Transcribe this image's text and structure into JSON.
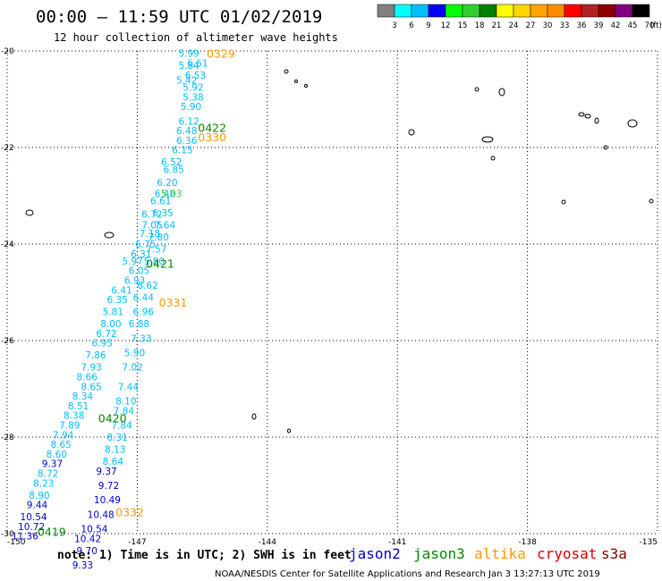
{
  "header": {
    "title": "00:00 – 11:59 UTC 01/02/2019",
    "subtitle": "12 hour collection of altimeter wave heights"
  },
  "colorbar": {
    "labels": [
      "3",
      "6",
      "9",
      "12",
      "15",
      "18",
      "21",
      "24",
      "27",
      "30",
      "33",
      "36",
      "39",
      "42",
      "45",
      "70"
    ],
    "unit": "(ft)",
    "colors": [
      "#808080",
      "#00ffff",
      "#00bfff",
      "#0000ff",
      "#00ff00",
      "#32cd32",
      "#008000",
      "#ffff00",
      "#ffd700",
      "#ffa500",
      "#ff8c00",
      "#ff0000",
      "#b22222",
      "#8b0000",
      "#800080",
      "#000000"
    ]
  },
  "axes": {
    "lat_ticks": [
      "-20",
      "-22",
      "-24",
      "-26",
      "-28",
      "-30"
    ],
    "lon_ticks": [
      "-150",
      "-147",
      "-144",
      "-141",
      "-138",
      "-135"
    ],
    "lon_range": [
      -150,
      -135
    ],
    "lat_range": [
      -30,
      -20
    ]
  },
  "legend": {
    "note": "note: 1) Time is in UTC; 2) SWH is in feet",
    "satellites": [
      {
        "name": "jason2",
        "color": "#0000cc"
      },
      {
        "name": "jason3",
        "color": "#008800"
      },
      {
        "name": "altika",
        "color": "#ff9900"
      },
      {
        "name": "cryosat",
        "color": "#dd0000"
      },
      {
        "name": "s3a",
        "color": "#880000"
      }
    ]
  },
  "credit": "NOAA/NESDIS Center for Satellite Applications and Research   Jan  3 13:27:13 UTC 2019",
  "time_labels": [
    {
      "text": "0329",
      "lon": -145.4,
      "lat": -20.05,
      "color": "#ff9900"
    },
    {
      "text": "0422",
      "lon": -145.6,
      "lat": -21.58,
      "color": "#008800"
    },
    {
      "text": "0330",
      "lon": -145.6,
      "lat": -21.78,
      "color": "#ff9900"
    },
    {
      "text": "0421",
      "lon": -146.8,
      "lat": -24.4,
      "color": "#008800"
    },
    {
      "text": "0331",
      "lon": -146.5,
      "lat": -25.2,
      "color": "#ff9900"
    },
    {
      "text": "0420",
      "lon": -147.9,
      "lat": -27.6,
      "color": "#008800"
    },
    {
      "text": "0332",
      "lon": -147.5,
      "lat": -29.55,
      "color": "#ff9900"
    },
    {
      "text": "0419",
      "lon": -149.3,
      "lat": -29.95,
      "color": "#008800"
    }
  ],
  "observations": {
    "cyan": [
      {
        "t": "5.99",
        "lon": -146.05,
        "lat": -20.05
      },
      {
        "t": "6.61",
        "lon": -145.85,
        "lat": -20.25
      },
      {
        "t": "5.84",
        "lon": -146.05,
        "lat": -20.3
      },
      {
        "t": "6.53",
        "lon": -145.9,
        "lat": -20.5
      },
      {
        "t": "5.42",
        "lon": -146.1,
        "lat": -20.6
      },
      {
        "t": "5.92",
        "lon": -145.95,
        "lat": -20.75
      },
      {
        "t": "5.38",
        "lon": -145.95,
        "lat": -20.95
      },
      {
        "t": "5.90",
        "lon": -146.0,
        "lat": -21.15
      },
      {
        "t": "6.12",
        "lon": -146.05,
        "lat": -21.45
      },
      {
        "t": "6.48",
        "lon": -146.1,
        "lat": -21.65
      },
      {
        "t": "6.36",
        "lon": -146.1,
        "lat": -21.85
      },
      {
        "t": "6.15",
        "lon": -146.2,
        "lat": -22.05
      },
      {
        "t": "6.52",
        "lon": -146.45,
        "lat": -22.3
      },
      {
        "t": "6.85",
        "lon": -146.4,
        "lat": -22.45
      },
      {
        "t": "6.20",
        "lon": -146.55,
        "lat": -22.72
      },
      {
        "t": "6.48",
        "lon": -146.6,
        "lat": -22.95
      },
      {
        "t": "6.61",
        "lon": -146.7,
        "lat": -23.1
      },
      {
        "t": "6.35",
        "lon": -146.65,
        "lat": -23.35
      },
      {
        "t": "6.72",
        "lon": -146.9,
        "lat": -23.38
      },
      {
        "t": "7.64",
        "lon": -146.6,
        "lat": -23.6
      },
      {
        "t": "7.05",
        "lon": -146.9,
        "lat": -23.6
      },
      {
        "t": "7.18",
        "lon": -146.95,
        "lat": -23.78
      },
      {
        "t": "7.80",
        "lon": -146.75,
        "lat": -23.85
      },
      {
        "t": "6.75",
        "lon": -147.05,
        "lat": -24.0
      },
      {
        "t": "7.57",
        "lon": -146.8,
        "lat": -24.1
      },
      {
        "t": "6.31",
        "lon": -147.15,
        "lat": -24.2
      },
      {
        "t": "5.80",
        "lon": -146.85,
        "lat": -24.35
      },
      {
        "t": "5.97",
        "lon": -147.35,
        "lat": -24.35
      },
      {
        "t": "6.05",
        "lon": -147.2,
        "lat": -24.55
      },
      {
        "t": "6.93",
        "lon": -147.3,
        "lat": -24.75
      },
      {
        "t": "6.62",
        "lon": -147.0,
        "lat": -24.85
      },
      {
        "t": "6.41",
        "lon": -147.6,
        "lat": -24.95
      },
      {
        "t": "6.44",
        "lon": -147.1,
        "lat": -25.1
      },
      {
        "t": "6.35",
        "lon": -147.7,
        "lat": -25.15
      },
      {
        "t": "6.96",
        "lon": -147.1,
        "lat": -25.4
      },
      {
        "t": "5.81",
        "lon": -147.8,
        "lat": -25.4
      },
      {
        "t": "8.00",
        "lon": -147.85,
        "lat": -25.65
      },
      {
        "t": "6.88",
        "lon": -147.2,
        "lat": -25.65
      },
      {
        "t": "6.72",
        "lon": -147.95,
        "lat": -25.85
      },
      {
        "t": "7.33",
        "lon": -147.15,
        "lat": -25.95
      },
      {
        "t": "6.95",
        "lon": -148.05,
        "lat": -26.05
      },
      {
        "t": "5.90",
        "lon": -147.3,
        "lat": -26.25
      },
      {
        "t": "7.86",
        "lon": -148.2,
        "lat": -26.3
      },
      {
        "t": "7.02",
        "lon": -147.35,
        "lat": -26.55
      },
      {
        "t": "7.93",
        "lon": -148.3,
        "lat": -26.55
      },
      {
        "t": "8.66",
        "lon": -148.4,
        "lat": -26.75
      },
      {
        "t": "8.65",
        "lon": -148.3,
        "lat": -26.95
      },
      {
        "t": "7.44",
        "lon": -147.45,
        "lat": -26.95
      },
      {
        "t": "8.34",
        "lon": -148.5,
        "lat": -27.15
      },
      {
        "t": "8.10",
        "lon": -147.5,
        "lat": -27.25
      },
      {
        "t": "8.51",
        "lon": -148.6,
        "lat": -27.35
      },
      {
        "t": "7.84",
        "lon": -147.55,
        "lat": -27.45
      },
      {
        "t": "8.38",
        "lon": -148.7,
        "lat": -27.55
      },
      {
        "t": "7.84",
        "lon": -147.6,
        "lat": -27.75
      },
      {
        "t": "7.89",
        "lon": -148.8,
        "lat": -27.75
      },
      {
        "t": "7.94",
        "lon": -148.95,
        "lat": -27.95
      },
      {
        "t": "8.31",
        "lon": -147.7,
        "lat": -28.0
      },
      {
        "t": "8.65",
        "lon": -149.0,
        "lat": -28.15
      },
      {
        "t": "8.13",
        "lon": -147.75,
        "lat": -28.25
      },
      {
        "t": "8.60",
        "lon": -149.1,
        "lat": -28.35
      },
      {
        "t": "8.64",
        "lon": -147.8,
        "lat": -28.5
      },
      {
        "t": "8.72",
        "lon": -149.3,
        "lat": -28.75
      },
      {
        "t": "8.23",
        "lon": -149.4,
        "lat": -28.95
      },
      {
        "t": "8.90",
        "lon": -149.5,
        "lat": -29.2
      }
    ],
    "blue": [
      {
        "t": "9.37",
        "lon": -149.2,
        "lat": -28.55
      },
      {
        "t": "9.37",
        "lon": -147.95,
        "lat": -28.7
      },
      {
        "t": "9.72",
        "lon": -147.9,
        "lat": -29.0
      },
      {
        "t": "9.44",
        "lon": -149.55,
        "lat": -29.4
      },
      {
        "t": "10.49",
        "lon": -148.0,
        "lat": -29.3
      },
      {
        "t": "10.54",
        "lon": -149.7,
        "lat": -29.65
      },
      {
        "t": "10.48",
        "lon": -148.15,
        "lat": -29.6
      },
      {
        "t": "10.72",
        "lon": -149.75,
        "lat": -29.85
      },
      {
        "t": "10.54",
        "lon": -148.3,
        "lat": -29.9
      },
      {
        "t": "11.36",
        "lon": -149.9,
        "lat": -30.05
      },
      {
        "t": "10.42",
        "lon": -148.45,
        "lat": -30.1
      },
      {
        "t": "9.70",
        "lon": -148.4,
        "lat": -30.35
      },
      {
        "t": "9.33",
        "lon": -148.5,
        "lat": -30.65
      }
    ],
    "green": [
      {
        "t": "5.03",
        "lon": -146.45,
        "lat": -22.95
      }
    ]
  }
}
